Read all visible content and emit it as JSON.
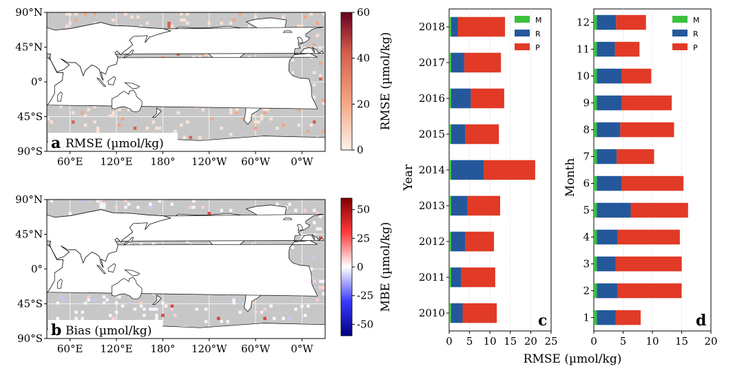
{
  "chart_data": [
    {
      "id": "a",
      "type": "heatmap",
      "subtype": "global-map",
      "panel_label": "a",
      "title": "RMSE (µmol/kg)",
      "lat_ticks": [
        "90°N",
        "45°N",
        "0°",
        "45°S",
        "90°S"
      ],
      "lon_ticks": [
        "60°E",
        "120°E",
        "180°",
        "120°W",
        "60°W",
        "0°W"
      ],
      "colorbar": {
        "label": "RMSE (µmol/kg)",
        "min": 0,
        "max": 60,
        "ticks": [
          "0",
          "20",
          "40",
          "60"
        ],
        "colors": [
          "#fdf1e9",
          "#f4a582",
          "#d6604d",
          "#67001f"
        ]
      },
      "land_color": "#ffffff",
      "ocean_color": "#c7c7c7"
    },
    {
      "id": "b",
      "type": "heatmap",
      "subtype": "global-map",
      "panel_label": "b",
      "title": "Bias (µmol/kg)",
      "lat_ticks": [
        "90°N",
        "45°N",
        "0°",
        "45°S",
        "90°S"
      ],
      "lon_ticks": [
        "60°E",
        "120°E",
        "180°",
        "120°W",
        "60°W",
        "0°W"
      ],
      "colorbar": {
        "label": "MBE (µmol/kg)",
        "min": -60,
        "max": 60,
        "ticks": [
          "50",
          "25",
          "0",
          "-25",
          "-50"
        ],
        "colors": [
          "#000080",
          "#3a3aff",
          "#ffffff",
          "#ff3a3a",
          "#800000"
        ]
      },
      "land_color": "#ffffff",
      "ocean_color": "#c7c7c7"
    },
    {
      "id": "c",
      "type": "bar",
      "orientation": "horizontal",
      "stacked": true,
      "panel_label": "c",
      "ylabel": "Year",
      "xlabel": "RMSE (µmol/kg)",
      "xlim": [
        0,
        25
      ],
      "xticks": [
        "0",
        "5",
        "10",
        "15",
        "20",
        "25"
      ],
      "categories": [
        "2010",
        "2011",
        "2012",
        "2013",
        "2014",
        "2015",
        "2016",
        "2017",
        "2018"
      ],
      "series": [
        {
          "name": "M",
          "color": "#3cc13c",
          "values": [
            0.5,
            0.5,
            0.5,
            0.5,
            0.5,
            0.5,
            0.5,
            0.5,
            0.5
          ]
        },
        {
          "name": "R",
          "color": "#24589b",
          "values": [
            2.8,
            2.5,
            3.5,
            4.0,
            8.0,
            3.5,
            4.8,
            3.2,
            1.6
          ]
        },
        {
          "name": "P",
          "color": "#e13a26",
          "values": [
            8.4,
            8.3,
            7.0,
            8.0,
            12.6,
            8.2,
            8.2,
            9.0,
            11.6
          ]
        }
      ],
      "legend": {
        "entries": [
          "M",
          "R",
          "P"
        ],
        "position": "top-right"
      }
    },
    {
      "id": "d",
      "type": "bar",
      "orientation": "horizontal",
      "stacked": true,
      "panel_label": "d",
      "ylabel": "Month",
      "xlabel": "",
      "xlim": [
        0,
        20
      ],
      "xticks": [
        "0",
        "5",
        "10",
        "15",
        "20"
      ],
      "categories": [
        "1",
        "2",
        "3",
        "4",
        "5",
        "6",
        "7",
        "8",
        "9",
        "10",
        "11",
        "12"
      ],
      "series": [
        {
          "name": "M",
          "color": "#3cc13c",
          "values": [
            0.5,
            0.5,
            0.5,
            0.5,
            0.5,
            0.5,
            0.5,
            0.5,
            0.5,
            0.5,
            0.5,
            0.5
          ]
        },
        {
          "name": "R",
          "color": "#24589b",
          "values": [
            3.2,
            3.5,
            3.2,
            3.5,
            5.8,
            4.2,
            3.4,
            4.0,
            4.3,
            4.2,
            3.1,
            3.3
          ]
        },
        {
          "name": "P",
          "color": "#e13a26",
          "values": [
            4.3,
            11.0,
            11.3,
            10.7,
            9.8,
            10.6,
            6.4,
            9.2,
            8.5,
            5.1,
            4.2,
            5.1
          ]
        }
      ],
      "legend": {
        "entries": [
          "M",
          "R",
          "P"
        ],
        "position": "top-right"
      }
    }
  ]
}
